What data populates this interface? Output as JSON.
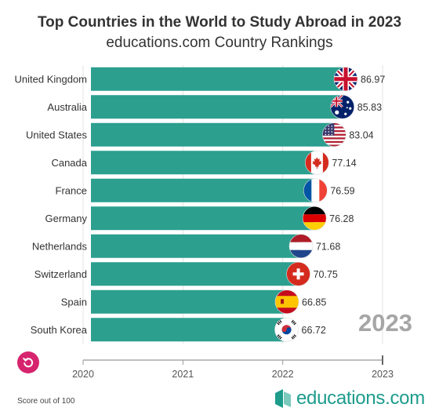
{
  "header": {
    "title": "Top Countries in the World to Study Abroad in 2023",
    "subtitle": "educations.com Country Rankings"
  },
  "year_label": "2023",
  "footnote": "Score out of 100",
  "brand": {
    "name": "educations.com",
    "color": "#1d9c8c"
  },
  "replay_button": {
    "icon": "replay-icon",
    "color": "#d6246e"
  },
  "bar_color": "#2c9f8f",
  "chart_data": {
    "type": "bar",
    "orientation": "horizontal",
    "title": "Top Countries in the World to Study Abroad in 2023",
    "subtitle": "educations.com Country Rankings",
    "categories": [
      "United Kingdom",
      "Australia",
      "United States",
      "Canada",
      "France",
      "Germany",
      "Netherlands",
      "Switzerland",
      "Spain",
      "South Korea"
    ],
    "values": [
      86.97,
      85.83,
      83.04,
      77.14,
      76.59,
      76.28,
      71.68,
      70.75,
      66.85,
      66.72
    ],
    "value_labels": [
      "86.97",
      "85.83",
      "83.04",
      "77.14",
      "76.59",
      "76.28",
      "71.68",
      "70.75",
      "66.85",
      "66.72"
    ],
    "flags": [
      "uk-flag-icon",
      "australia-flag-icon",
      "usa-flag-icon",
      "canada-flag-icon",
      "france-flag-icon",
      "germany-flag-icon",
      "netherlands-flag-icon",
      "switzerland-flag-icon",
      "spain-flag-icon",
      "south-korea-flag-icon"
    ],
    "timeline": {
      "ticks": [
        "2020",
        "2021",
        "2022",
        "2023"
      ],
      "current": "2023"
    },
    "grid": true,
    "xlabel": "",
    "ylabel": ""
  }
}
